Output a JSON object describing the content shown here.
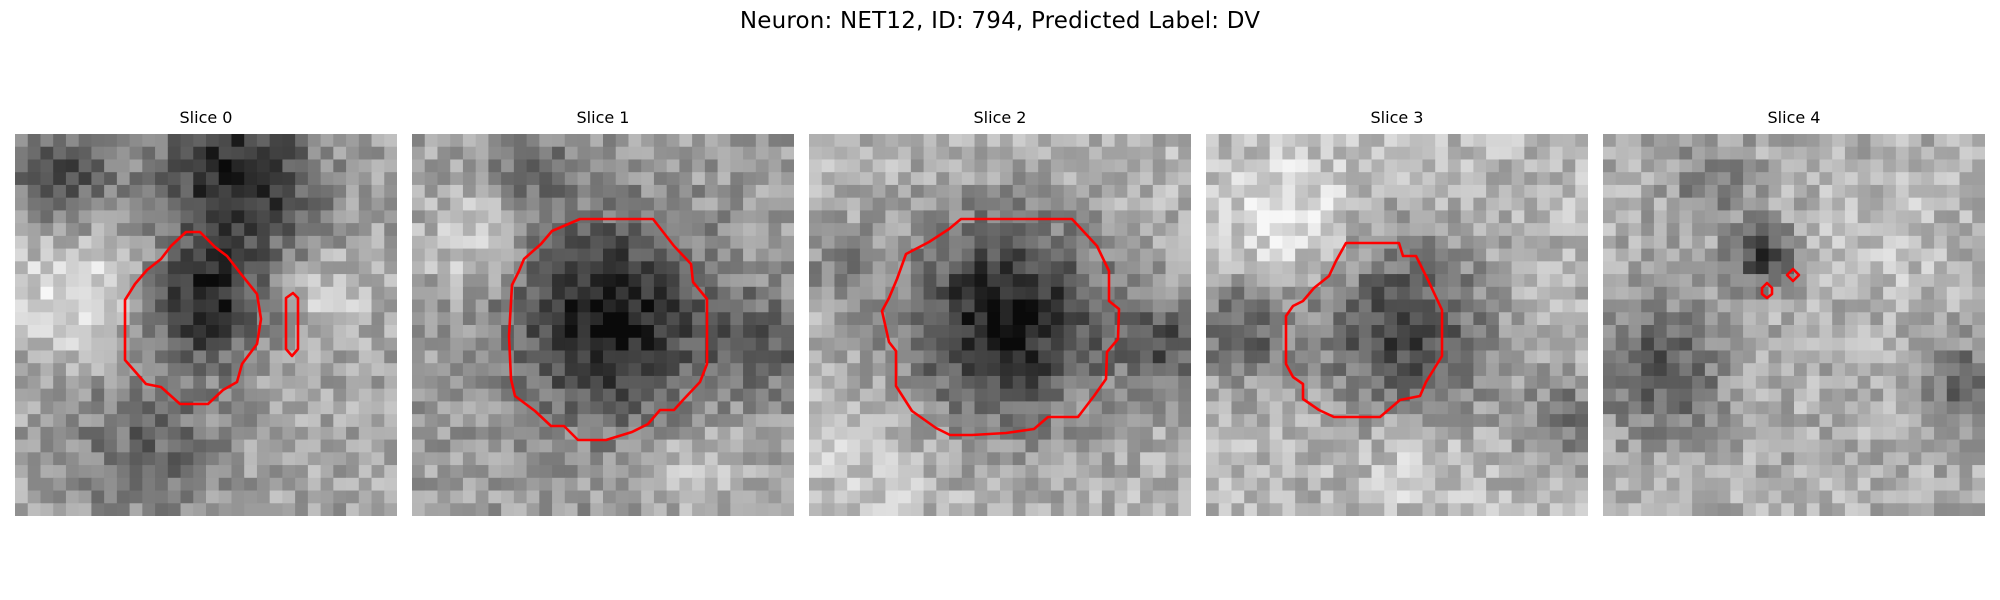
{
  "figure": {
    "title": "Neuron: NET12, ID: 794, Predicted Label: DV",
    "contour_color": "#ff0000",
    "colormap": "gray"
  },
  "panels": [
    {
      "title": "Slice 0",
      "pattern": "slice-0"
    },
    {
      "title": "Slice 1",
      "pattern": "slice-1"
    },
    {
      "title": "Slice 2",
      "pattern": "slice-2"
    },
    {
      "title": "Slice 3",
      "pattern": "slice-3"
    },
    {
      "title": "Slice 4",
      "pattern": "slice-4"
    }
  ]
}
